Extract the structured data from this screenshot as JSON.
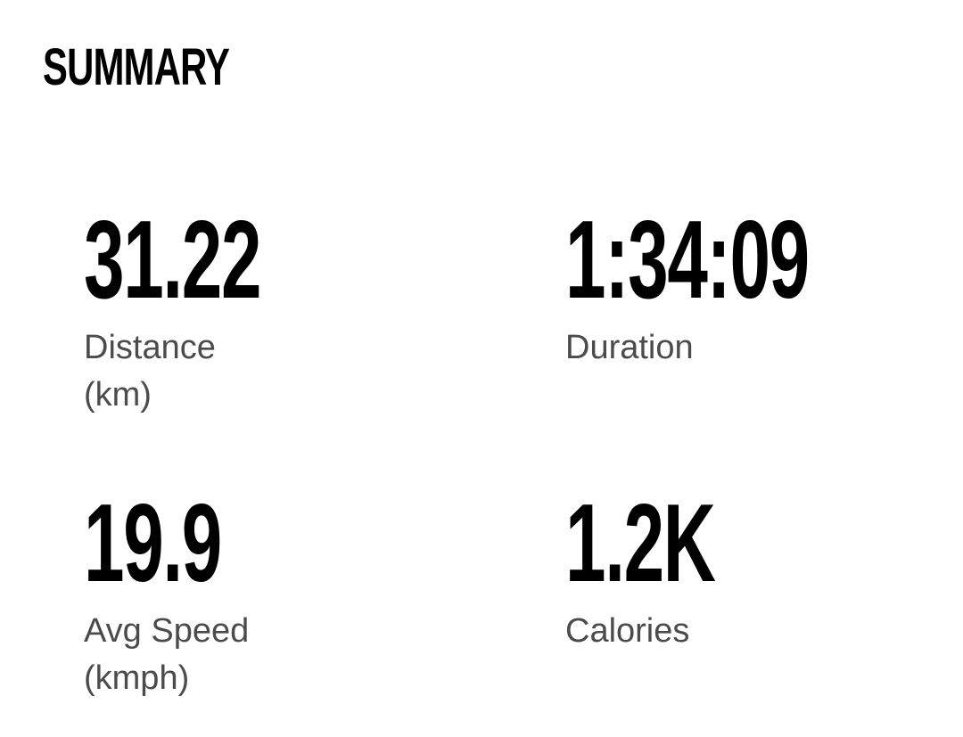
{
  "summary": {
    "title": "SUMMARY",
    "stats": [
      {
        "value": "31.22",
        "label": "Distance\n(km)"
      },
      {
        "value": "1:34:09",
        "label": "Duration"
      },
      {
        "value": "19.9",
        "label": "Avg Speed\n(kmph)"
      },
      {
        "value": "1.2K",
        "label": "Calories"
      }
    ]
  },
  "colors": {
    "background": "#ffffff",
    "value_text": "#000000",
    "label_text": "#4b4b4b"
  }
}
